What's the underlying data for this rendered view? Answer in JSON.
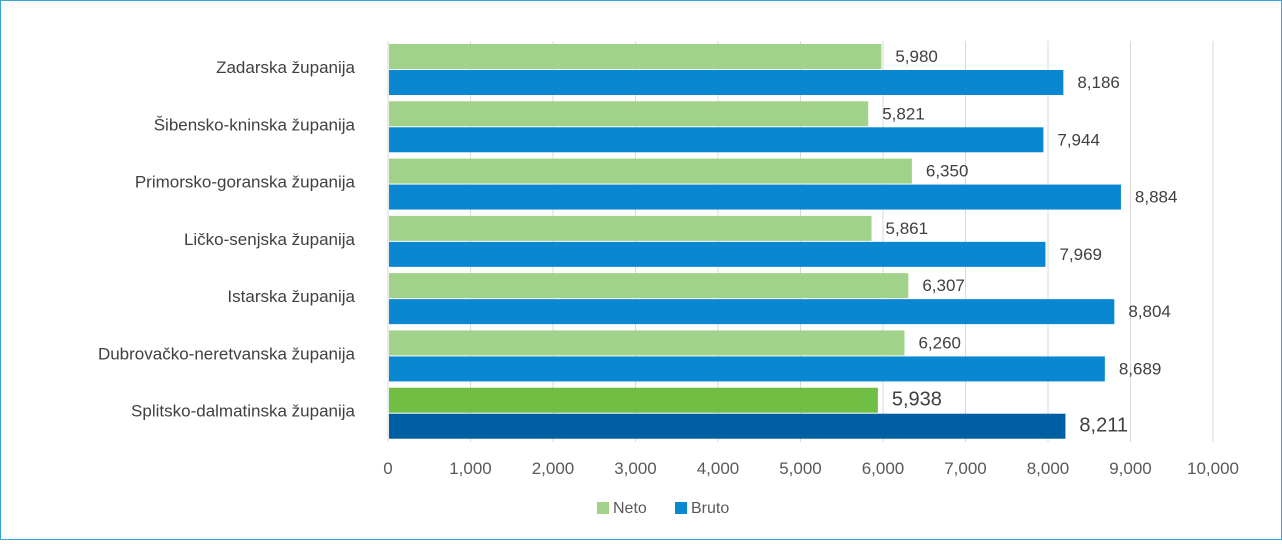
{
  "chart_data": {
    "type": "bar",
    "orientation": "horizontal",
    "categories": [
      "Zadarska županija",
      "Šibensko-kninska županija",
      "Primorsko-goranska županija",
      "Ličko-senjska županija",
      "Istarska županija",
      "Dubrovačko-neretvanska županija",
      "Splitsko-dalmatinska županija"
    ],
    "series": [
      {
        "name": "Neto",
        "values": [
          5980,
          5821,
          6350,
          5861,
          6307,
          6260,
          5938
        ],
        "color": "#a0d28a",
        "highlight_color": "#70bf44"
      },
      {
        "name": "Bruto",
        "values": [
          8186,
          7944,
          8884,
          7969,
          8804,
          8689,
          8211
        ],
        "color": "#0a87d1",
        "highlight_color": "#005ea2"
      }
    ],
    "value_labels": {
      "Neto": [
        "5,980",
        "5,821",
        "6,350",
        "5,861",
        "6,307",
        "6,260",
        "5,938"
      ],
      "Bruto": [
        "8,186",
        "7,944",
        "8,884",
        "7,969",
        "8,804",
        "8,689",
        "8,211"
      ]
    },
    "highlighted_category": "Splitsko-dalmatinska županija",
    "xlim": [
      0,
      10000
    ],
    "x_ticks": [
      0,
      1000,
      2000,
      3000,
      4000,
      5000,
      6000,
      7000,
      8000,
      9000,
      10000
    ],
    "x_tick_labels": [
      "0",
      "1,000",
      "2,000",
      "3,000",
      "4,000",
      "5,000",
      "6,000",
      "7,000",
      "8,000",
      "9,000",
      "10,000"
    ],
    "grid": "vertical",
    "legend": {
      "position": "bottom",
      "entries": [
        "Neto",
        "Bruto"
      ]
    },
    "title": "",
    "xlabel": "",
    "ylabel": ""
  }
}
